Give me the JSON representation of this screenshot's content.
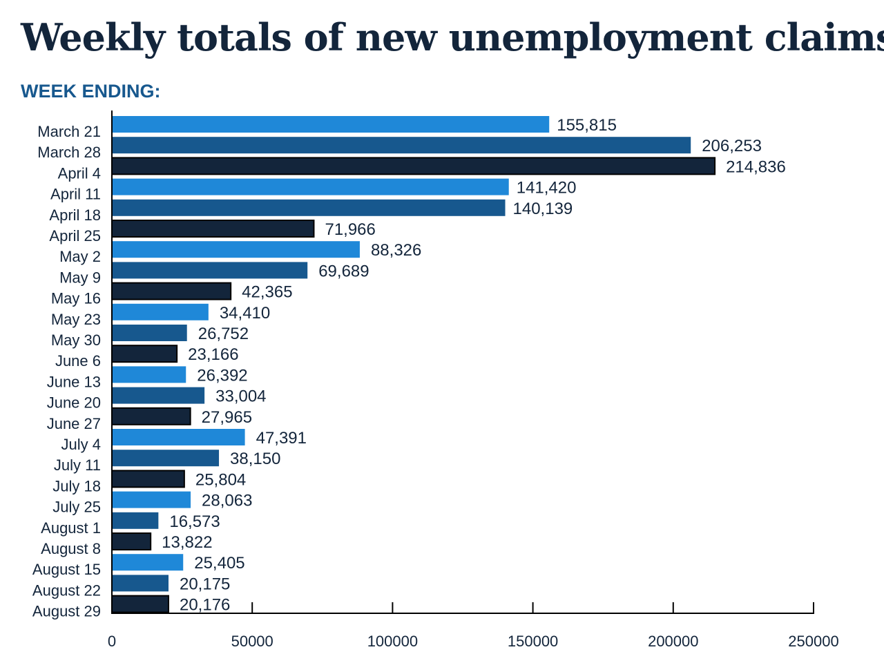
{
  "chart_data": {
    "type": "bar",
    "orientation": "horizontal",
    "title": "Weekly totals of new unemployment claims",
    "subtitle": "WEEK ENDING:",
    "xlabel": "",
    "ylabel": "",
    "xlim": [
      0,
      250000
    ],
    "x_ticks": [
      "0",
      "50000",
      "100000",
      "150000",
      "200000",
      "250000"
    ],
    "grid": false,
    "categories": [
      "March 21",
      "March 28",
      "April 4",
      "April 11",
      "April 18",
      "April 25",
      "May 2",
      "May 9",
      "May 16",
      "May 23",
      "May 30",
      "June 6",
      "June 13",
      "June 20",
      "June 27",
      "July 4",
      "July 11",
      "July 18",
      "July 25",
      "August 1",
      "August 8",
      "August 15",
      "August 22",
      "August 29"
    ],
    "values": [
      155815,
      206253,
      214836,
      141420,
      140139,
      71966,
      88326,
      69689,
      42365,
      34410,
      26752,
      23166,
      26392,
      33004,
      27965,
      47391,
      38150,
      25804,
      28063,
      16573,
      13822,
      25405,
      20175,
      20176
    ],
    "data_labels": [
      "155,815",
      "206,253",
      "214,836",
      "141,420",
      "140,139",
      "71,966",
      "88,326",
      "69,689",
      "42,365",
      "34,410",
      "26,752",
      "23,166",
      "26,392",
      "33,004",
      "27,965",
      "47,391",
      "38,150",
      "25,804",
      "28,063",
      "16,573",
      "13,822",
      "25,405",
      "20,175",
      "20,176"
    ],
    "bar_colors": [
      "#1f88d8",
      "#17588e",
      "#13253b"
    ]
  }
}
